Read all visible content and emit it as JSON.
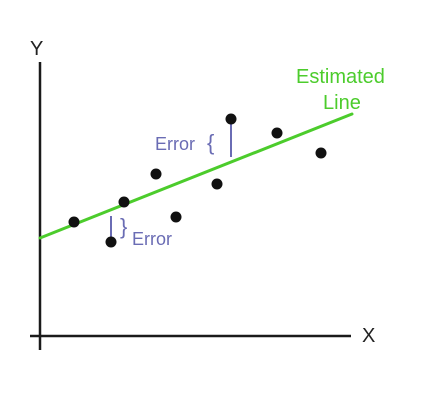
{
  "labels": {
    "y_axis": "Y",
    "x_axis": "X",
    "estimated_line_1": "Estimated",
    "estimated_line_2": "Line",
    "error_upper": "Error",
    "error_lower": "Error",
    "brace_upper": "{",
    "brace_lower": "}"
  },
  "colors": {
    "axis": "#1a1a1a",
    "line": "#4ccc2c",
    "points": "#111111",
    "error": "#6a6cb4"
  }
}
